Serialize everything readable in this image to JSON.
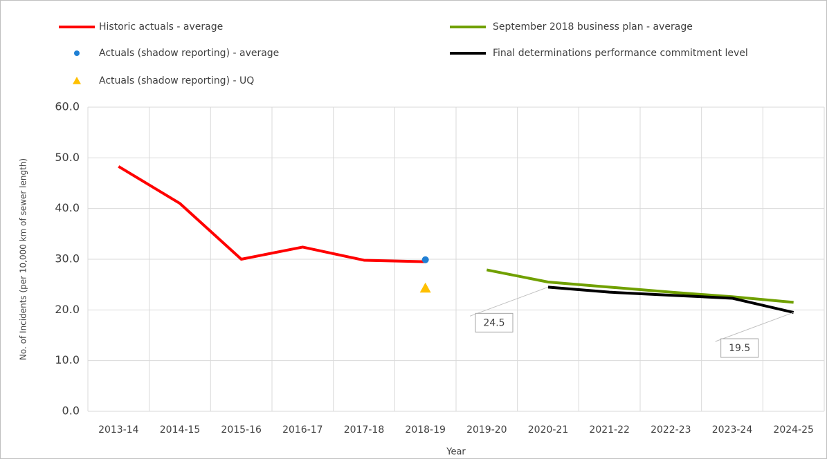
{
  "chart_data": {
    "type": "line",
    "y_label": "No. of Incidents (per 10,000 km of sewer length)",
    "x_label": "Year",
    "categories": [
      "2013-14",
      "2014-15",
      "2015-16",
      "2016-17",
      "2017-18",
      "2018-19",
      "2019-20",
      "2020-21",
      "2021-22",
      "2022-23",
      "2023-24",
      "2024-25"
    ],
    "ylim": [
      0,
      60
    ],
    "yticks": [
      {
        "value": 0,
        "label": "0.0"
      },
      {
        "value": 10,
        "label": "10.0"
      },
      {
        "value": 20,
        "label": "20.0"
      },
      {
        "value": 30,
        "label": "30.0"
      },
      {
        "value": 40,
        "label": "40.0"
      },
      {
        "value": 50,
        "label": "50.0"
      },
      {
        "value": 60,
        "label": "60.0"
      }
    ],
    "grid": true,
    "series": [
      {
        "name": "Historic actuals - average",
        "color": "#ff0000",
        "style": "line",
        "values": [
          48.3,
          41.0,
          30.0,
          32.4,
          29.8,
          29.5,
          null,
          null,
          null,
          null,
          null,
          null
        ]
      },
      {
        "name": "Actuals (shadow reporting) - average",
        "color": "#1f7fd4",
        "style": "circle",
        "values": [
          null,
          null,
          null,
          null,
          null,
          29.9,
          null,
          null,
          null,
          null,
          null,
          null
        ]
      },
      {
        "name": "Actuals (shadow reporting) - UQ",
        "color": "#ffc000",
        "style": "triangle",
        "values": [
          null,
          null,
          null,
          null,
          null,
          24.3,
          null,
          null,
          null,
          null,
          null,
          null
        ]
      },
      {
        "name": "September 2018 business plan - average",
        "color": "#70a000",
        "style": "line",
        "values": [
          null,
          null,
          null,
          null,
          null,
          null,
          27.9,
          25.5,
          24.5,
          23.5,
          22.6,
          21.5
        ]
      },
      {
        "name": "Final determinations performance commitment level",
        "color": "#000000",
        "style": "line",
        "values": [
          null,
          null,
          null,
          null,
          null,
          null,
          null,
          24.5,
          23.5,
          22.9,
          22.3,
          19.5
        ],
        "value_labels": [
          null,
          null,
          null,
          null,
          null,
          null,
          null,
          "24.5",
          null,
          null,
          null,
          "19.5"
        ]
      }
    ]
  }
}
